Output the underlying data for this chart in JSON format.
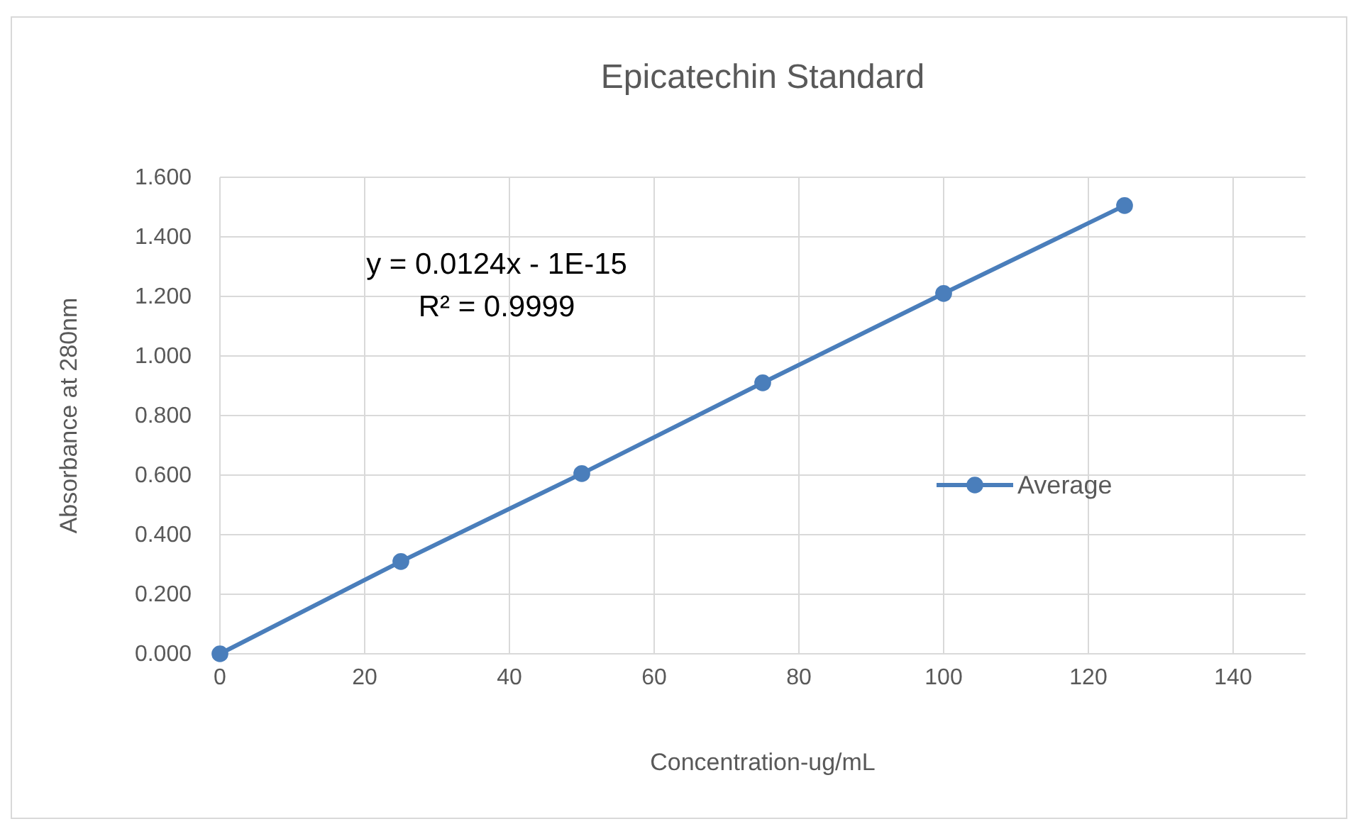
{
  "chart_data": {
    "type": "line",
    "title": "Epicatechin Standard",
    "xlabel": "Concentration-ug/mL",
    "ylabel": "Absorbance at 280nm",
    "annotations": [
      "y = 0.0124x - 1E-15",
      "R² = 0.9999"
    ],
    "x": [
      0,
      25,
      50,
      75,
      100,
      125
    ],
    "series": [
      {
        "name": "Average",
        "color": "#4a7ebb",
        "values": [
          0,
          0.31,
          0.605,
          0.91,
          1.21,
          1.505
        ]
      }
    ],
    "xlim": [
      0,
      150
    ],
    "xticks": [
      0,
      20,
      40,
      60,
      80,
      100,
      120,
      140
    ],
    "ylim": [
      0,
      1.6
    ],
    "yticks": [
      {
        "value": 0,
        "label": "0.000"
      },
      {
        "value": 0.2,
        "label": "0.200"
      },
      {
        "value": 0.4,
        "label": "0.400"
      },
      {
        "value": 0.6,
        "label": "0.600"
      },
      {
        "value": 0.8,
        "label": "0.800"
      },
      {
        "value": 1,
        "label": "1.000"
      },
      {
        "value": 1.2,
        "label": "1.200"
      },
      {
        "value": 1.4,
        "label": "1.400"
      },
      {
        "value": 1.6,
        "label": "1.600"
      }
    ],
    "grid": true,
    "legend": "right",
    "marker": "circle",
    "line_style": "solid"
  }
}
